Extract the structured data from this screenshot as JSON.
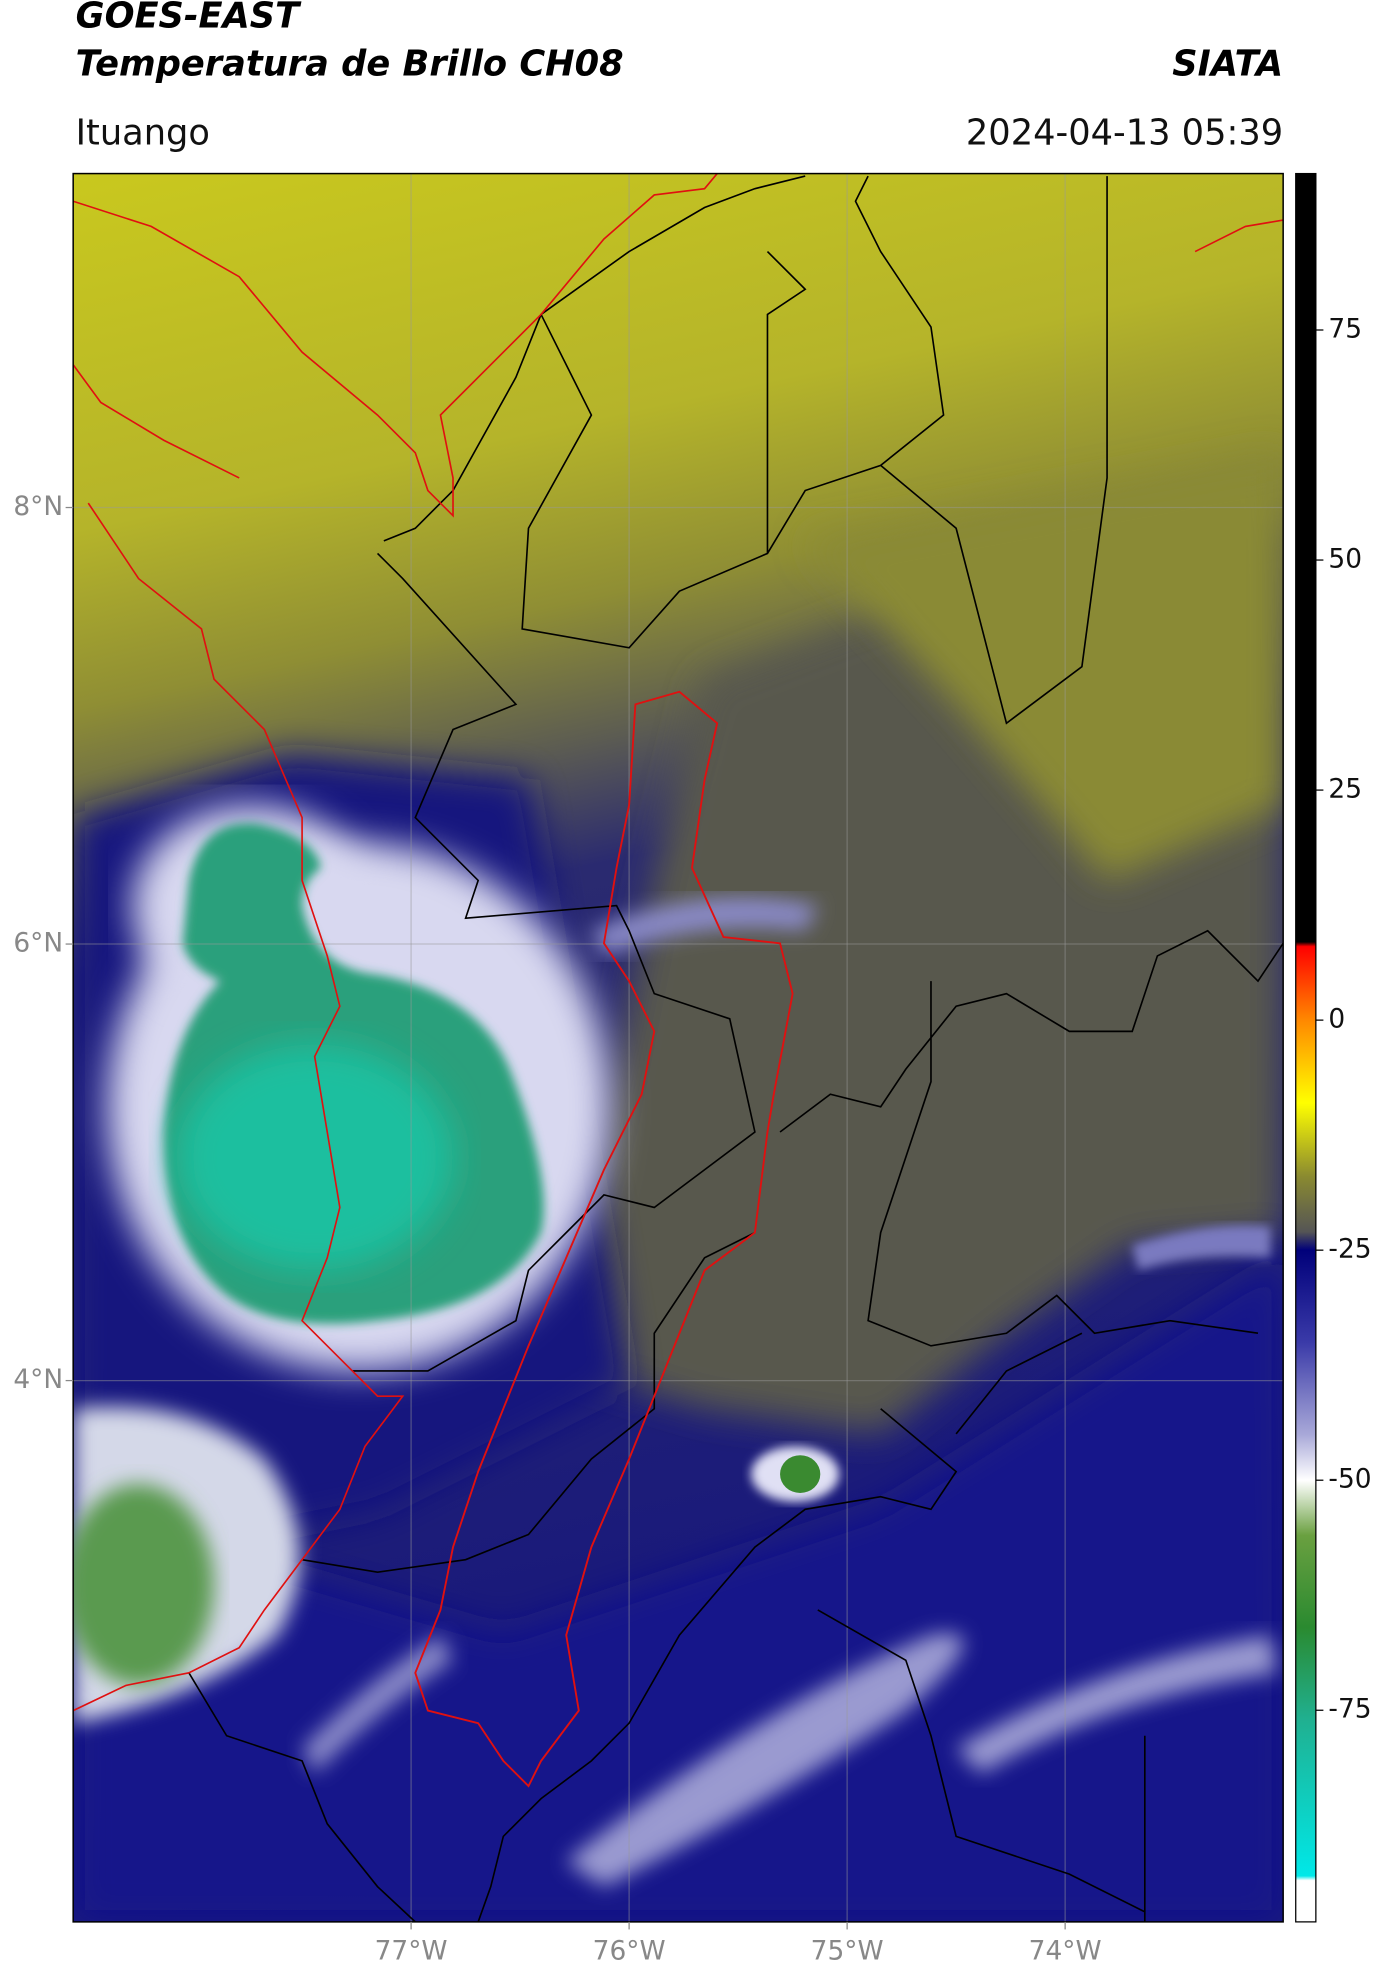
{
  "chart_data": {
    "type": "map",
    "title": "GOES-EAST",
    "subtitle": "Temperatura de Brillo CH08",
    "source": "SIATA",
    "location": "Ituango",
    "datetime": "2024-04-13 05:39",
    "xlim": [
      -78.55,
      -73.0
    ],
    "ylim": [
      1.52,
      9.53
    ],
    "xticks": [
      {
        "value": -77,
        "label": "77°W"
      },
      {
        "value": -76,
        "label": "76°W"
      },
      {
        "value": -75,
        "label": "75°W"
      },
      {
        "value": -74,
        "label": "74°W"
      }
    ],
    "yticks": [
      {
        "value": 8,
        "label": "8°N"
      },
      {
        "value": 6,
        "label": "6°N"
      },
      {
        "value": 4,
        "label": "4°N"
      }
    ],
    "grid": true,
    "colorbar": {
      "lim": [
        -98,
        92
      ],
      "ticks": [
        75,
        50,
        25,
        0,
        -25,
        -50,
        -75
      ],
      "stops": [
        {
          "value": 92,
          "color": "#000000"
        },
        {
          "value": 8.5,
          "color": "#000000"
        },
        {
          "value": 8,
          "color": "#ff0000"
        },
        {
          "value": 0,
          "color": "#ff8800"
        },
        {
          "value": -9,
          "color": "#ffff00"
        },
        {
          "value": -17,
          "color": "#8a8a30"
        },
        {
          "value": -23,
          "color": "#555555"
        },
        {
          "value": -25,
          "color": "#00007a"
        },
        {
          "value": -35,
          "color": "#3a3aa8"
        },
        {
          "value": -45,
          "color": "#a8a8d8"
        },
        {
          "value": -50,
          "color": "#ffffff"
        },
        {
          "value": -56,
          "color": "#6aa040"
        },
        {
          "value": -66,
          "color": "#2a8a30"
        },
        {
          "value": -76,
          "color": "#20b090"
        },
        {
          "value": -93,
          "color": "#00e8e8"
        },
        {
          "value": -93.5,
          "color": "#ffffff"
        },
        {
          "value": -98,
          "color": "#ffffff"
        }
      ]
    }
  }
}
